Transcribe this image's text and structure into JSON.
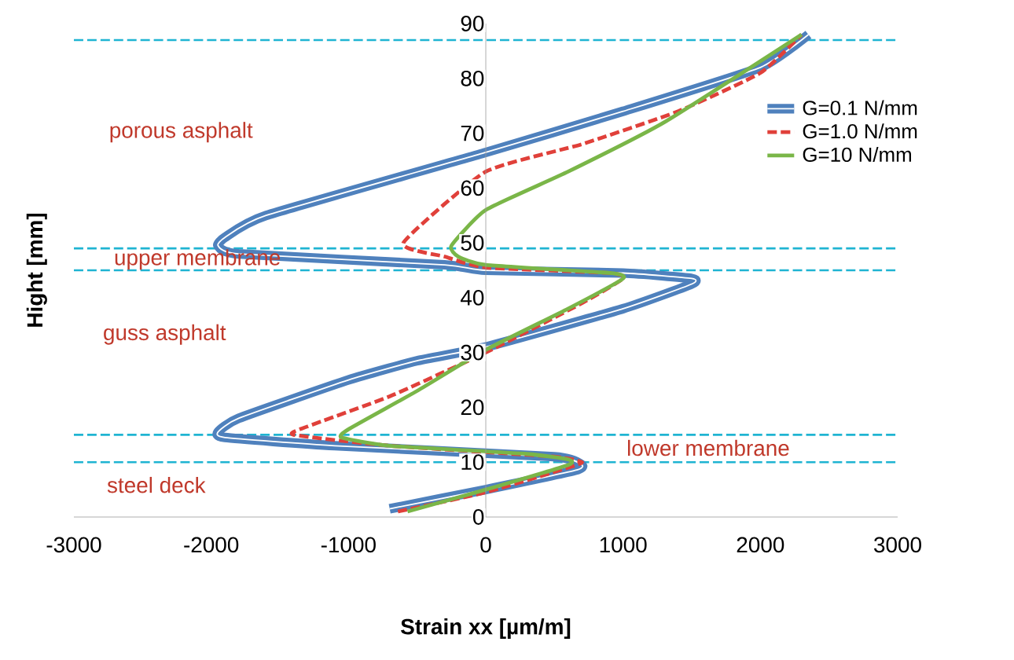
{
  "chart_data": {
    "type": "line",
    "xlabel": "Strain xx [µm/m]",
    "ylabel": "Hight [mm]",
    "xlim": [
      -3000,
      3000
    ],
    "xticks": [
      -3000,
      -2000,
      -1000,
      0,
      1000,
      2000,
      3000
    ],
    "ylim": [
      0,
      90
    ],
    "yticks": [
      0,
      10,
      20,
      30,
      40,
      50,
      60,
      70,
      80,
      90
    ],
    "legend": "right",
    "series": [
      {
        "name": "G=0.1 N/mm",
        "color": "#4f81bd",
        "line_style": "solid",
        "x": [
          -700,
          0,
          650,
          700,
          500,
          -1100,
          -1900,
          -1950,
          -1800,
          -1000,
          -500,
          0,
          1000,
          1500,
          1500,
          1000,
          0,
          -300,
          -1800,
          -1950,
          -1900,
          -1600,
          0,
          1000,
          2000,
          2350
        ],
        "values": [
          1.5,
          5,
          8.5,
          9.5,
          11,
          13,
          14.5,
          15.5,
          18,
          25,
          28.5,
          31,
          38,
          42.5,
          43.5,
          44.5,
          45,
          46,
          48,
          49.5,
          51,
          55,
          66.5,
          74,
          82,
          88
        ]
      },
      {
        "name": "G=1.0 N/mm",
        "color": "#e0403a",
        "line_style": "dashed",
        "x": [
          -640,
          0,
          600,
          700,
          500,
          -700,
          -1400,
          -1300,
          -700,
          0,
          700,
          1000,
          900,
          0,
          -300,
          -600,
          0,
          700,
          1400,
          2000,
          2300
        ],
        "values": [
          1,
          4.5,
          9,
          10,
          11,
          13,
          15,
          16.5,
          22,
          30,
          39,
          43.5,
          44.5,
          45.5,
          47.5,
          50,
          63,
          68,
          74,
          81,
          88
        ]
      },
      {
        "name": "G=10 N/mm",
        "color": "#7ab648",
        "line_style": "solid",
        "x": [
          -570,
          0,
          600,
          600,
          300,
          -700,
          -1050,
          -1000,
          -500,
          0,
          600,
          1000,
          900,
          0,
          -200,
          -250,
          0,
          600,
          1300,
          2300
        ],
        "values": [
          1,
          5,
          9.5,
          10.5,
          11.5,
          13,
          14.5,
          16,
          23,
          30.5,
          38,
          43.5,
          44.5,
          46,
          47.5,
          49.5,
          56,
          63,
          72,
          88
        ]
      }
    ],
    "ref_lines": [
      {
        "axis": "y",
        "value": 87,
        "color": "#1fb4d2",
        "line_style": "dashed"
      },
      {
        "axis": "y",
        "value": 49,
        "color": "#1fb4d2",
        "line_style": "dashed"
      },
      {
        "axis": "y",
        "value": 45,
        "color": "#1fb4d2",
        "line_style": "dashed"
      },
      {
        "axis": "y",
        "value": 15,
        "color": "#1fb4d2",
        "line_style": "dashed"
      },
      {
        "axis": "y",
        "value": 10,
        "color": "#1fb4d2",
        "line_style": "dashed"
      }
    ],
    "annotations": [
      "porous asphalt",
      "upper membrane",
      "guss asphalt",
      "lower membrane",
      "steel deck"
    ]
  }
}
